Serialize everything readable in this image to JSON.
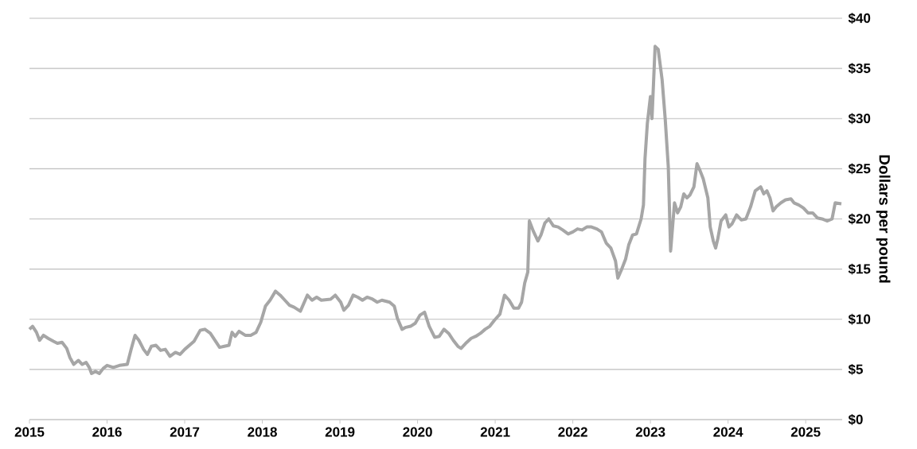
{
  "chart_data": {
    "type": "line",
    "ylabel": "Dollars per pound",
    "color": "#a6a6a6",
    "grid": "y",
    "xlim": [
      2015,
      2025.47
    ],
    "xticks": [
      2015,
      2016,
      2017,
      2018,
      2019,
      2020,
      2021,
      2022,
      2023,
      2024,
      2025
    ],
    "ylim": [
      0,
      40
    ],
    "yticks": [
      {
        "value": 0,
        "label": "$0"
      },
      {
        "value": 5,
        "label": "$5"
      },
      {
        "value": 10,
        "label": "$10"
      },
      {
        "value": 15,
        "label": "$15"
      },
      {
        "value": 20,
        "label": "$20"
      },
      {
        "value": 25,
        "label": "$25"
      },
      {
        "value": 30,
        "label": "$30"
      },
      {
        "value": 35,
        "label": "$35"
      },
      {
        "value": 40,
        "label": "$40"
      }
    ],
    "x": [
      2015.0,
      2015.04,
      2015.09,
      2015.13,
      2015.18,
      2015.24,
      2015.31,
      2015.36,
      2015.42,
      2015.48,
      2015.52,
      2015.57,
      2015.63,
      2015.68,
      2015.73,
      2015.77,
      2015.8,
      2015.85,
      2015.9,
      2015.95,
      2016.0,
      2016.08,
      2016.16,
      2016.26,
      2016.31,
      2016.36,
      2016.41,
      2016.47,
      2016.52,
      2016.57,
      2016.63,
      2016.69,
      2016.75,
      2016.81,
      2016.88,
      2016.94,
      2017.0,
      2017.06,
      2017.12,
      2017.2,
      2017.26,
      2017.33,
      2017.39,
      2017.45,
      2017.51,
      2017.57,
      2017.61,
      2017.65,
      2017.7,
      2017.78,
      2017.85,
      2017.92,
      2017.98,
      2018.04,
      2018.1,
      2018.17,
      2018.23,
      2018.29,
      2018.35,
      2018.41,
      2018.49,
      2018.58,
      2018.64,
      2018.7,
      2018.76,
      2018.88,
      2018.94,
      2019.01,
      2019.05,
      2019.11,
      2019.17,
      2019.23,
      2019.29,
      2019.35,
      2019.42,
      2019.48,
      2019.54,
      2019.64,
      2019.7,
      2019.74,
      2019.8,
      2019.85,
      2019.91,
      2019.97,
      2020.03,
      2020.09,
      2020.15,
      2020.22,
      2020.28,
      2020.34,
      2020.4,
      2020.46,
      2020.52,
      2020.56,
      2020.62,
      2020.69,
      2020.75,
      2020.81,
      2020.87,
      2020.93,
      2020.99,
      2021.06,
      2021.12,
      2021.18,
      2021.24,
      2021.3,
      2021.34,
      2021.38,
      2021.42,
      2021.44,
      2021.49,
      2021.55,
      2021.59,
      2021.64,
      2021.69,
      2021.75,
      2021.81,
      2021.87,
      2021.94,
      2022.0,
      2022.06,
      2022.12,
      2022.18,
      2022.24,
      2022.31,
      2022.37,
      2022.43,
      2022.49,
      2022.55,
      2022.58,
      2022.63,
      2022.68,
      2022.72,
      2022.77,
      2022.82,
      2022.88,
      2022.91,
      2022.93,
      2022.96,
      2023.0,
      2023.02,
      2023.06,
      2023.1,
      2023.15,
      2023.19,
      2023.23,
      2023.26,
      2023.31,
      2023.35,
      2023.39,
      2023.43,
      2023.47,
      2023.51,
      2023.56,
      2023.6,
      2023.64,
      2023.68,
      2023.74,
      2023.77,
      2023.81,
      2023.84,
      2023.87,
      2023.91,
      2023.97,
      2024.01,
      2024.05,
      2024.11,
      2024.17,
      2024.23,
      2024.29,
      2024.35,
      2024.42,
      2024.46,
      2024.5,
      2024.54,
      2024.58,
      2024.62,
      2024.68,
      2024.74,
      2024.81,
      2024.85,
      2024.91,
      2024.97,
      2025.03,
      2025.09,
      2025.15,
      2025.21,
      2025.28,
      2025.34,
      2025.38,
      2025.46
    ],
    "values": [
      9.0,
      9.3,
      8.7,
      7.9,
      8.4,
      8.1,
      7.8,
      7.6,
      7.7,
      7.1,
      6.2,
      5.5,
      5.9,
      5.5,
      5.7,
      5.2,
      4.6,
      4.8,
      4.6,
      5.1,
      5.4,
      5.2,
      5.4,
      5.5,
      7.0,
      8.4,
      7.9,
      7.0,
      6.5,
      7.3,
      7.4,
      6.9,
      7.0,
      6.3,
      6.7,
      6.5,
      7.0,
      7.4,
      7.8,
      8.9,
      9.0,
      8.6,
      7.9,
      7.2,
      7.3,
      7.4,
      8.7,
      8.3,
      8.8,
      8.4,
      8.4,
      8.7,
      9.7,
      11.3,
      11.9,
      12.8,
      12.4,
      11.9,
      11.4,
      11.2,
      10.8,
      12.4,
      11.9,
      12.2,
      11.9,
      12.0,
      12.4,
      11.7,
      10.9,
      11.4,
      12.4,
      12.2,
      11.9,
      12.2,
      12.0,
      11.7,
      11.9,
      11.7,
      11.3,
      10.1,
      9.0,
      9.2,
      9.3,
      9.6,
      10.4,
      10.7,
      9.3,
      8.2,
      8.3,
      9.0,
      8.6,
      7.9,
      7.3,
      7.1,
      7.6,
      8.1,
      8.3,
      8.6,
      9.0,
      9.3,
      9.9,
      10.5,
      12.4,
      11.9,
      11.1,
      11.1,
      11.7,
      13.6,
      14.7,
      19.8,
      18.8,
      17.8,
      18.4,
      19.6,
      20.0,
      19.3,
      19.2,
      18.9,
      18.5,
      18.7,
      19.0,
      18.9,
      19.2,
      19.2,
      19.0,
      18.7,
      17.6,
      17.1,
      15.8,
      14.1,
      15.0,
      16.0,
      17.4,
      18.4,
      18.5,
      20.0,
      21.4,
      26.0,
      29.5,
      32.2,
      30.0,
      37.2,
      36.9,
      33.9,
      30.0,
      25.2,
      16.8,
      21.6,
      20.6,
      21.2,
      22.5,
      22.1,
      22.4,
      23.2,
      25.5,
      24.8,
      24.0,
      22.1,
      19.2,
      17.8,
      17.1,
      18.1,
      19.8,
      20.4,
      19.2,
      19.5,
      20.4,
      19.9,
      20.0,
      21.2,
      22.8,
      23.2,
      22.5,
      22.8,
      22.1,
      20.8,
      21.2,
      21.6,
      21.9,
      22.0,
      21.6,
      21.4,
      21.1,
      20.6,
      20.6,
      20.1,
      20.0,
      19.8,
      20.0,
      21.6,
      21.5
    ]
  }
}
